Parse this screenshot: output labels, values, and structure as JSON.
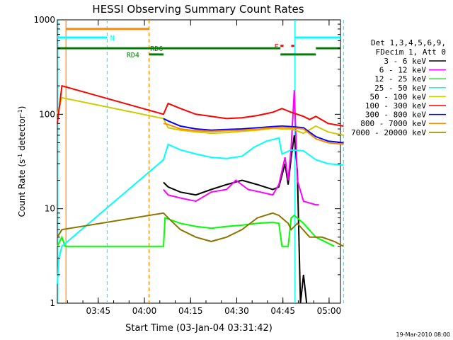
{
  "chart_data": {
    "type": "line",
    "title": "HESSI Observing Summary Count Rates",
    "xlabel": "Start Time (03-Jan-04 03:31:42)",
    "ylabel_main": "Count Rate (s",
    "ylabel_sup1": "-1",
    "ylabel_mid": " detector",
    "ylabel_sup2": "-1",
    "ylabel_end": ")",
    "yscale": "log",
    "ylim": [
      1,
      1000
    ],
    "xlim_minutes": [
      0,
      92
    ],
    "xticks": [
      {
        "label": "03:45",
        "t": 13.3
      },
      {
        "label": "04:00",
        "t": 28.3
      },
      {
        "label": "04:15",
        "t": 43.3
      },
      {
        "label": "04:30",
        "t": 58.3
      },
      {
        "label": "04:45",
        "t": 73.3
      },
      {
        "label": "05:00",
        "t": 88.3
      }
    ],
    "yticks": [
      {
        "label": "1",
        "v": 1
      },
      {
        "label": "10",
        "v": 10
      },
      {
        "label": "100",
        "v": 100
      },
      {
        "label": "1000",
        "v": 1000
      }
    ],
    "legend_header": [
      "Det 1,3,4,5,6,9,",
      "FDecim 1, Att 0"
    ],
    "series": [
      {
        "name": "3 - 6 keV",
        "color": "#000000",
        "points": [
          [
            34.5,
            19
          ],
          [
            36,
            17
          ],
          [
            40,
            15
          ],
          [
            45,
            14
          ],
          [
            50,
            16
          ],
          [
            55,
            18
          ],
          [
            60,
            20
          ],
          [
            65,
            18
          ],
          [
            70,
            16
          ],
          [
            72,
            17
          ],
          [
            74,
            30
          ],
          [
            75,
            18
          ],
          [
            76,
            35
          ],
          [
            77,
            60
          ],
          [
            78,
            25
          ],
          [
            79,
            1
          ],
          [
            80,
            2
          ],
          [
            81,
            1
          ]
        ]
      },
      {
        "name": "6 - 12 keV",
        "color": "#ff00ff",
        "points": [
          [
            34.5,
            16
          ],
          [
            36,
            14
          ],
          [
            40,
            13
          ],
          [
            45,
            12
          ],
          [
            50,
            15
          ],
          [
            55,
            16
          ],
          [
            58,
            20
          ],
          [
            62,
            16
          ],
          [
            66,
            15
          ],
          [
            70,
            14
          ],
          [
            72,
            18
          ],
          [
            74,
            35
          ],
          [
            75,
            20
          ],
          [
            76,
            45
          ],
          [
            77,
            180
          ],
          [
            78,
            20
          ],
          [
            80,
            12
          ],
          [
            84,
            11
          ],
          [
            85,
            11
          ]
        ]
      },
      {
        "name": "12 - 25 keV",
        "color": "#00ff00",
        "points": [
          [
            0,
            4
          ],
          [
            1.5,
            5
          ],
          [
            2.5,
            4
          ],
          [
            34.5,
            4
          ],
          [
            35,
            8
          ],
          [
            40,
            7
          ],
          [
            45,
            6.5
          ],
          [
            50,
            6.2
          ],
          [
            55,
            6.5
          ],
          [
            60,
            6.7
          ],
          [
            65,
            7
          ],
          [
            70,
            7.2
          ],
          [
            72,
            7
          ],
          [
            73,
            4
          ],
          [
            75,
            4
          ],
          [
            76,
            8
          ],
          [
            77,
            8.5
          ],
          [
            80,
            7
          ],
          [
            84,
            5
          ],
          [
            90,
            4
          ]
        ]
      },
      {
        "name": "25 - 50 keV",
        "color": "#00ffff",
        "points": [
          [
            0,
            1.6
          ],
          [
            0.5,
            3
          ],
          [
            1.5,
            4
          ],
          [
            34.5,
            33
          ],
          [
            36,
            48
          ],
          [
            40,
            42
          ],
          [
            45,
            38
          ],
          [
            50,
            35
          ],
          [
            55,
            34
          ],
          [
            60,
            36
          ],
          [
            64,
            45
          ],
          [
            68,
            52
          ],
          [
            72,
            56
          ],
          [
            73,
            38
          ],
          [
            76,
            42
          ],
          [
            80,
            41
          ],
          [
            84,
            33
          ],
          [
            88,
            30
          ],
          [
            93,
            29
          ]
        ]
      },
      {
        "name": "50 - 100 keV",
        "color": "#cccc00",
        "points": [
          [
            0,
            100
          ],
          [
            1.5,
            150
          ],
          [
            34.5,
            90
          ],
          [
            36,
            72
          ],
          [
            40,
            68
          ],
          [
            45,
            65
          ],
          [
            50,
            63
          ],
          [
            55,
            64
          ],
          [
            60,
            66
          ],
          [
            65,
            68
          ],
          [
            70,
            71
          ],
          [
            73,
            70
          ],
          [
            76,
            70
          ],
          [
            80,
            63
          ],
          [
            84,
            75
          ],
          [
            88,
            65
          ],
          [
            93,
            60
          ]
        ]
      },
      {
        "name": "100 - 300 keV",
        "color": "#ff0000",
        "points": [
          [
            0,
            80
          ],
          [
            1.5,
            200
          ],
          [
            34.5,
            100
          ],
          [
            36,
            130
          ],
          [
            40,
            115
          ],
          [
            45,
            100
          ],
          [
            50,
            95
          ],
          [
            55,
            90
          ],
          [
            60,
            92
          ],
          [
            65,
            97
          ],
          [
            70,
            105
          ],
          [
            73,
            115
          ],
          [
            76,
            105
          ],
          [
            80,
            95
          ],
          [
            82,
            88
          ],
          [
            84,
            95
          ],
          [
            88,
            80
          ],
          [
            93,
            75
          ]
        ]
      },
      {
        "name": "300 - 800 keV",
        "color": "#0000ff",
        "points": [
          [
            34.5,
            90
          ],
          [
            36,
            85
          ],
          [
            40,
            75
          ],
          [
            45,
            70
          ],
          [
            50,
            68
          ],
          [
            55,
            69
          ],
          [
            60,
            70
          ],
          [
            65,
            72
          ],
          [
            70,
            74
          ],
          [
            73,
            75
          ],
          [
            76,
            74
          ],
          [
            80,
            72
          ],
          [
            84,
            58
          ],
          [
            88,
            52
          ],
          [
            93,
            50
          ]
        ]
      },
      {
        "name": "800 - 7000 keV",
        "color": "#ff8800",
        "points": [
          [
            34.5,
            80
          ],
          [
            36,
            78
          ],
          [
            40,
            70
          ],
          [
            45,
            67
          ],
          [
            50,
            66
          ],
          [
            55,
            67
          ],
          [
            60,
            68
          ],
          [
            65,
            70
          ],
          [
            70,
            72
          ],
          [
            73,
            73
          ],
          [
            76,
            72
          ],
          [
            80,
            70
          ],
          [
            84,
            55
          ],
          [
            88,
            50
          ],
          [
            93,
            48
          ]
        ]
      },
      {
        "name": "7000 - 20000 keV",
        "color": "#8b7500",
        "points": [
          [
            0,
            5
          ],
          [
            1.5,
            6
          ],
          [
            34.5,
            9
          ],
          [
            36,
            8
          ],
          [
            40,
            6
          ],
          [
            45,
            5
          ],
          [
            50,
            4.5
          ],
          [
            55,
            5
          ],
          [
            60,
            6
          ],
          [
            65,
            8
          ],
          [
            70,
            9
          ],
          [
            72,
            8.5
          ],
          [
            75,
            7
          ],
          [
            76,
            6
          ],
          [
            78,
            7
          ],
          [
            82,
            5
          ],
          [
            86,
            5
          ],
          [
            90,
            4.5
          ],
          [
            93,
            4
          ]
        ]
      }
    ],
    "vertical_lines": [
      {
        "t": 0.2,
        "color": "#00ffff",
        "style": "solid"
      },
      {
        "t": 2.8,
        "color": "#ff8800",
        "style": "solid"
      },
      {
        "t": 16.2,
        "color": "#00ffff",
        "style": "dash"
      },
      {
        "t": 29.8,
        "color": "#ff8800",
        "style": "dash"
      },
      {
        "t": 77.2,
        "color": "#00ffff",
        "style": "solid"
      },
      {
        "t": 93.0,
        "color": "#00ffff",
        "style": "dash"
      }
    ],
    "flag_bars": [
      {
        "label": "N",
        "color": "#00ffff",
        "v": 650,
        "segments": [
          [
            0,
            16.2
          ],
          [
            77.2,
            92
          ]
        ],
        "label_t": 17.2
      },
      {
        "label": "",
        "color": "#ff8800",
        "v": 800,
        "segments": [
          [
            2.8,
            29.8
          ]
        ],
        "label_t": 0
      },
      {
        "label": "F",
        "color": "#ff0000",
        "v": 530,
        "segments": [
          [
            72.5,
            73.5
          ],
          [
            76,
            77
          ]
        ],
        "label_t": 70.5
      },
      {
        "label": "RD6",
        "color": "#008000",
        "v": 500,
        "segments": [
          [
            0,
            34.5
          ],
          [
            34.5,
            72.5
          ],
          [
            84,
            92
          ]
        ],
        "label_t": 30.2
      },
      {
        "label": "RD4",
        "color": "#008000",
        "v": 430,
        "segments": [
          [
            29.8,
            34.5
          ],
          [
            72.5,
            84
          ]
        ],
        "label_t": 22.5
      }
    ],
    "footer_date": "19-Mar-2010 08:00"
  }
}
